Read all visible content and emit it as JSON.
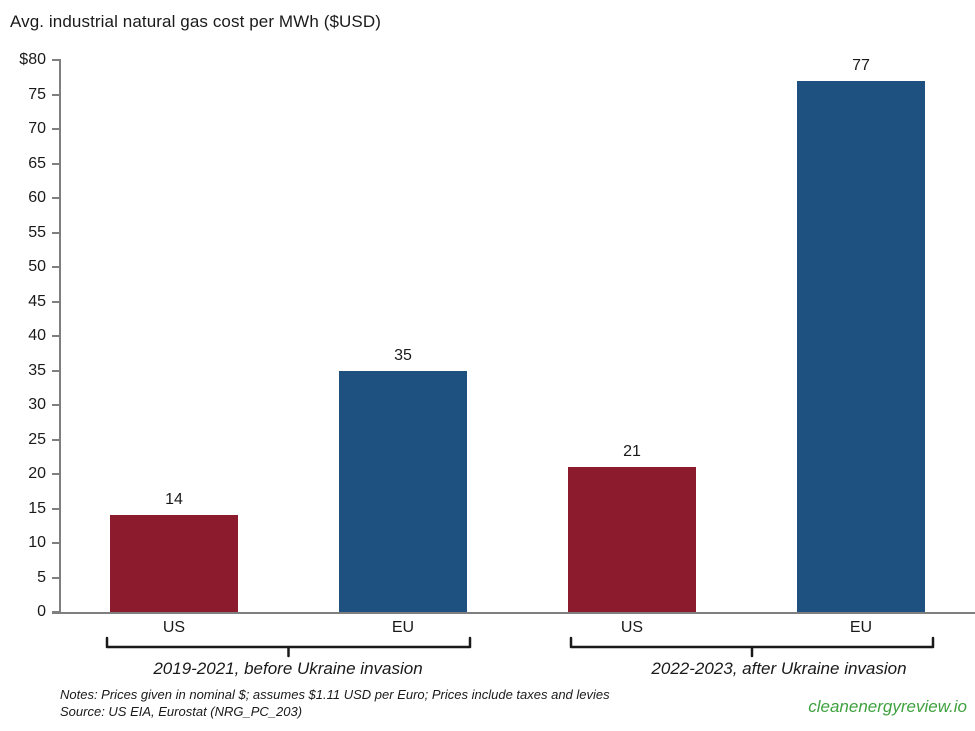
{
  "page": {
    "title": "Avg. industrial natural gas cost per MWh ($USD)",
    "notes_line1": "Notes: Prices given in nominal $; assumes $1.11 USD per Euro; Prices include taxes and levies",
    "notes_line2": "Source: US EIA, Eurostat (NRG_PC_203)",
    "watermark": "cleanenergyreview.io",
    "watermark_color": "#3fa13f"
  },
  "chart_data": {
    "type": "bar",
    "title": "Avg. industrial natural gas cost per MWh ($USD)",
    "xlabel": "",
    "ylabel": "",
    "ylim": [
      0,
      80
    ],
    "ytick_step": 5,
    "grid": false,
    "legend_position": "none",
    "axis_color": "#7f7f7f",
    "bracket_color": "#1a1a1a",
    "yticks": [
      {
        "value": 80,
        "label": "$80"
      },
      {
        "value": 75,
        "label": "75"
      },
      {
        "value": 70,
        "label": "70"
      },
      {
        "value": 65,
        "label": "65"
      },
      {
        "value": 60,
        "label": "60"
      },
      {
        "value": 55,
        "label": "55"
      },
      {
        "value": 50,
        "label": "50"
      },
      {
        "value": 45,
        "label": "45"
      },
      {
        "value": 40,
        "label": "40"
      },
      {
        "value": 35,
        "label": "35"
      },
      {
        "value": 30,
        "label": "30"
      },
      {
        "value": 25,
        "label": "25"
      },
      {
        "value": 20,
        "label": "20"
      },
      {
        "value": 15,
        "label": "15"
      },
      {
        "value": 10,
        "label": "10"
      },
      {
        "value": 5,
        "label": "5"
      },
      {
        "value": 0,
        "label": "0"
      }
    ],
    "series_colors": {
      "US": "#8c1b2d",
      "EU": "#1f5180"
    },
    "groups": [
      {
        "label": "2019-2021, before Ukraine invasion",
        "bars": [
          {
            "category": "US",
            "value": 14,
            "color": "#8c1b2d"
          },
          {
            "category": "EU",
            "value": 35,
            "color": "#1f5180"
          }
        ]
      },
      {
        "label": "2022-2023, after Ukraine invasion",
        "bars": [
          {
            "category": "US",
            "value": 21,
            "color": "#8c1b2d"
          },
          {
            "category": "EU",
            "value": 77,
            "color": "#1f5180"
          }
        ]
      }
    ]
  }
}
